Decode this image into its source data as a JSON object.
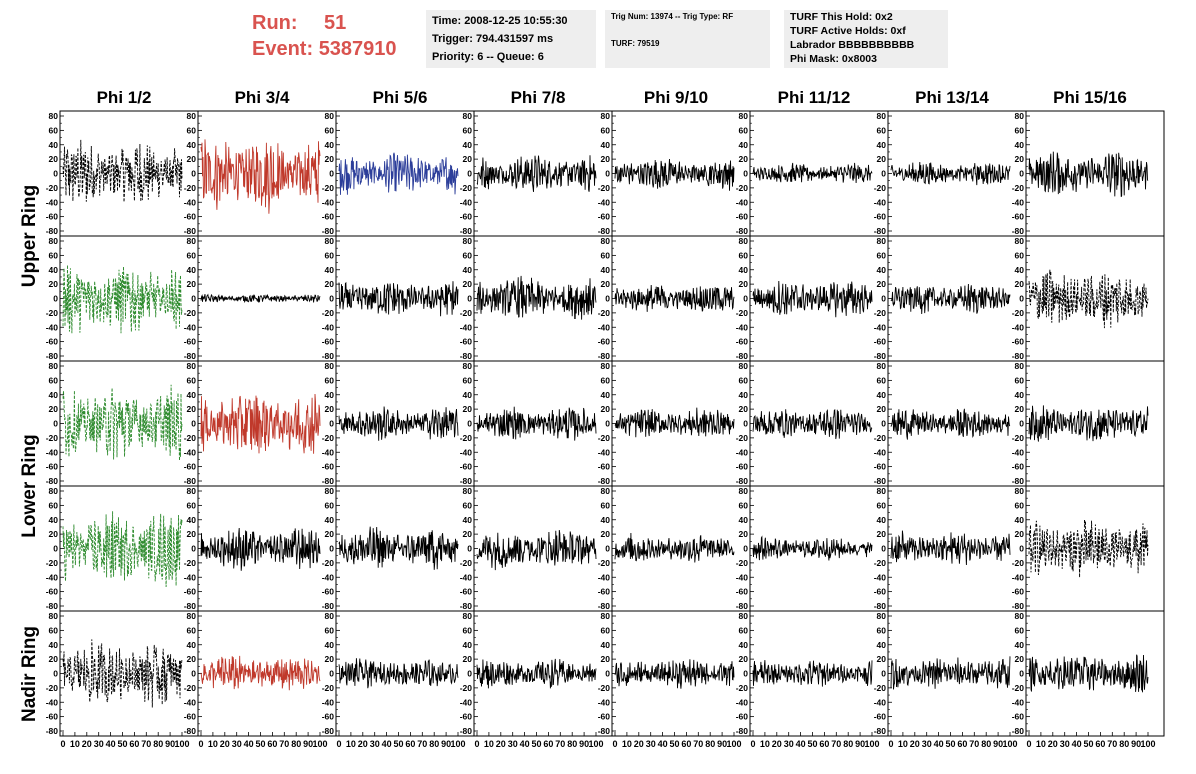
{
  "run": {
    "run_label": "Run:",
    "run_value": "51",
    "event_label": "Event:",
    "event_value": "5387910"
  },
  "info_time": {
    "time": "Time: 2008-12-25 10:55:30",
    "trigger": "Trigger: 794.431597 ms",
    "priority": "Priority: 6 -- Queue: 6"
  },
  "info_trig": {
    "trig": "Trig Num: 13974 -- Trig Type: RF",
    "turf": "TURF: 79519"
  },
  "info_turf": {
    "hold": "TURF This Hold: 0x2",
    "active": "TURF Active Holds: 0xf",
    "labrador": "Labrador BBBBBBBBBB",
    "phimask": "Phi Mask: 0x8003"
  },
  "columns": [
    "Phi 1/2",
    "Phi 3/4",
    "Phi 5/6",
    "Phi 7/8",
    "Phi 9/10",
    "Phi 11/12",
    "Phi 13/14",
    "Phi 15/16"
  ],
  "ring_labels": [
    "Upper Ring",
    "Lower Ring",
    "Nadir Ring"
  ],
  "colors": {
    "black": "#000000",
    "red": "#c0392b",
    "blue": "#2c3e9a",
    "green": "#2e8b2e"
  },
  "chart_data": {
    "type": "line",
    "x_range": [
      0,
      100
    ],
    "y_range": [
      -80,
      80
    ],
    "y_ticks": [
      "80",
      "60",
      "40",
      "20",
      "0",
      "-20",
      "-40",
      "-60",
      "-80"
    ],
    "x_ticks": [
      "0",
      "10",
      "20",
      "30",
      "40",
      "50",
      "60",
      "70",
      "80",
      "90",
      "100"
    ],
    "panels": [
      [
        {
          "color": "black",
          "style": "dashed",
          "amp": 40
        },
        {
          "color": "red",
          "style": "solid",
          "amp": 45
        },
        {
          "color": "blue",
          "style": "solid",
          "amp": 25
        },
        {
          "color": "black",
          "style": "solid",
          "amp": 22
        },
        {
          "color": "black",
          "style": "solid",
          "amp": 20
        },
        {
          "color": "black",
          "style": "solid",
          "amp": 12
        },
        {
          "color": "black",
          "style": "solid",
          "amp": 14
        },
        {
          "color": "black",
          "style": "solid",
          "amp": 28
        }
      ],
      [
        {
          "color": "green",
          "style": "dashed",
          "amp": 45
        },
        {
          "color": "black",
          "style": "solid",
          "amp": 5
        },
        {
          "color": "black",
          "style": "solid",
          "amp": 22
        },
        {
          "color": "black",
          "style": "solid",
          "amp": 26
        },
        {
          "color": "black",
          "style": "solid",
          "amp": 18
        },
        {
          "color": "black",
          "style": "solid",
          "amp": 22
        },
        {
          "color": "black",
          "style": "solid",
          "amp": 18
        },
        {
          "color": "black",
          "style": "dashed",
          "amp": 35
        }
      ],
      [
        {
          "color": "green",
          "style": "dashed",
          "amp": 45
        },
        {
          "color": "red",
          "style": "solid",
          "amp": 40
        },
        {
          "color": "black",
          "style": "solid",
          "amp": 20
        },
        {
          "color": "black",
          "style": "solid",
          "amp": 20
        },
        {
          "color": "black",
          "style": "solid",
          "amp": 18
        },
        {
          "color": "black",
          "style": "solid",
          "amp": 18
        },
        {
          "color": "black",
          "style": "solid",
          "amp": 18
        },
        {
          "color": "black",
          "style": "solid",
          "amp": 22
        }
      ],
      [
        {
          "color": "green",
          "style": "dashed",
          "amp": 45
        },
        {
          "color": "black",
          "style": "solid",
          "amp": 25
        },
        {
          "color": "black",
          "style": "solid",
          "amp": 25
        },
        {
          "color": "black",
          "style": "solid",
          "amp": 25
        },
        {
          "color": "black",
          "style": "solid",
          "amp": 18
        },
        {
          "color": "black",
          "style": "solid",
          "amp": 14
        },
        {
          "color": "black",
          "style": "solid",
          "amp": 20
        },
        {
          "color": "black",
          "style": "dashed",
          "amp": 35
        }
      ],
      [
        {
          "color": "black",
          "style": "dashed",
          "amp": 40
        },
        {
          "color": "red",
          "style": "solid",
          "amp": 22
        },
        {
          "color": "black",
          "style": "solid",
          "amp": 18
        },
        {
          "color": "black",
          "style": "solid",
          "amp": 18
        },
        {
          "color": "black",
          "style": "solid",
          "amp": 18
        },
        {
          "color": "black",
          "style": "solid",
          "amp": 16
        },
        {
          "color": "black",
          "style": "solid",
          "amp": 20
        },
        {
          "color": "black",
          "style": "solid",
          "amp": 24
        }
      ]
    ]
  }
}
